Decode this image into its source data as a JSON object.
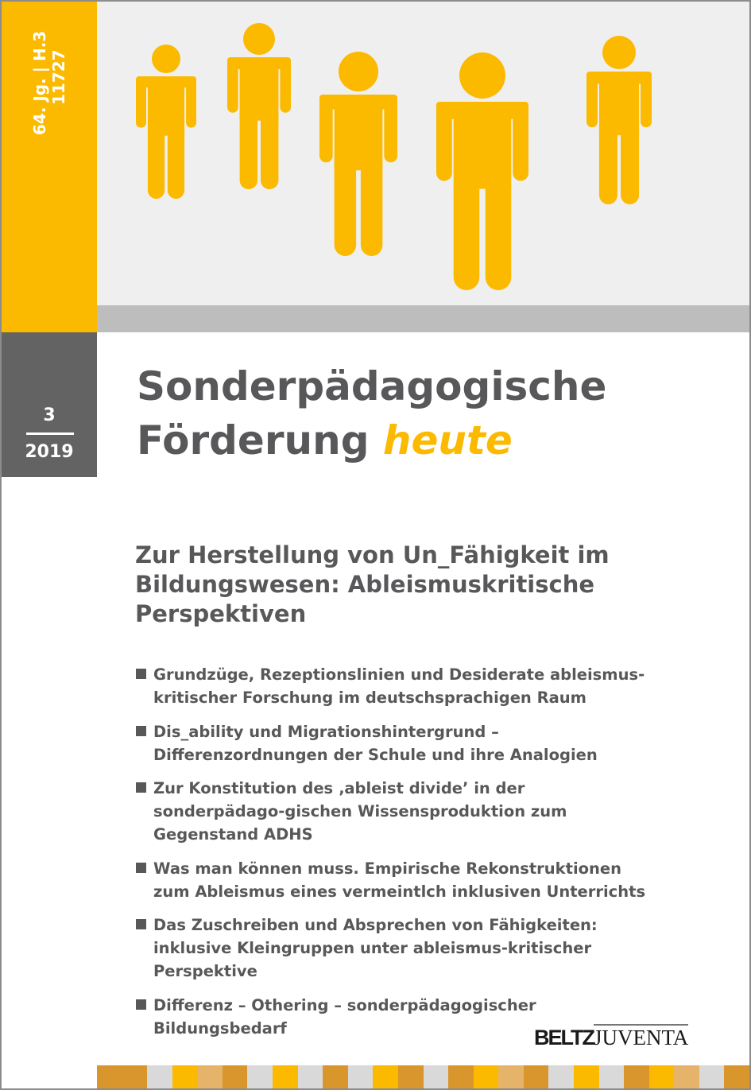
{
  "spine": {
    "volume": "64. Jg. | H.3",
    "number": "11727"
  },
  "issue": {
    "number": "3",
    "year": "2019"
  },
  "journal": {
    "title_line1": "Sonderpädagogische",
    "title_line2": "Förderung",
    "title_accent": "heute"
  },
  "theme": "Zur Herstellung von Un_Fähigkeit im Bildungswesen: Ableismuskritische Perspektiven",
  "articles": [
    "Grundzüge, Rezeptionslinien und Desiderate ableismus-kritischer Forschung im deutschsprachigen Raum",
    "Dis_ability und Migrationshintergrund – Differenzordnungen der Schule und ihre Analogien",
    "Zur Konstitution des ‚ableist divide’ in der sonderpädago-gischen Wissensproduktion zum Gegenstand ADHS",
    "Was man können muss. Empirische Rekonstruktionen zum Ableismus eines vermeintlch inklusiven Unterrichts",
    "Das Zuschreiben und Absprechen von Fähigkeiten: inklusive Kleingruppen unter ableismus-kritischer Perspektive",
    "Differenz – Othering – sonderpädagogischer Bildungsbedarf"
  ],
  "publisher": {
    "part1": "BELTZ",
    "part2": "JUVENTA"
  },
  "colors": {
    "yellow": "#fbb900",
    "orange": "#d8962c",
    "light_orange": "#e6b36a",
    "grey": "#d9d9d9",
    "text": "#58585a",
    "dark_grey": "#636363"
  },
  "stripe_pattern": [
    "O",
    "O",
    "G",
    "Y",
    "L",
    "O",
    "G",
    "Y",
    "G",
    "O",
    "G",
    "Y",
    "O",
    "G",
    "O",
    "Y",
    "L",
    "O",
    "G",
    "Y",
    "G",
    "O",
    "Y",
    "L",
    "G",
    "O"
  ]
}
